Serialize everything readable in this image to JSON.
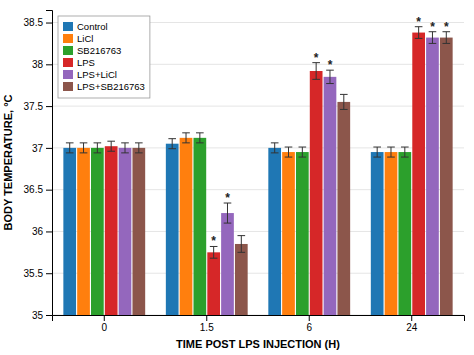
{
  "chart_data": {
    "type": "bar",
    "categories": [
      "0",
      "1.5",
      "6",
      "24"
    ],
    "xlabel": "TIME POST LPS INJECTION (H)",
    "ylabel": "BODY TEMPERATURE, °C",
    "series": [
      {
        "name": "Control",
        "values": [
          37.0,
          37.05,
          37.0,
          36.95
        ],
        "errors": [
          0.06,
          0.06,
          0.06,
          0.06
        ]
      },
      {
        "name": "LiCl",
        "values": [
          37.0,
          37.12,
          36.95,
          36.95
        ],
        "errors": [
          0.06,
          0.06,
          0.06,
          0.06
        ]
      },
      {
        "name": "SB216763",
        "values": [
          37.0,
          37.12,
          36.95,
          36.95
        ],
        "errors": [
          0.06,
          0.06,
          0.06,
          0.06
        ]
      },
      {
        "name": "LPS",
        "values": [
          37.02,
          35.75,
          37.92,
          38.38
        ],
        "errors": [
          0.06,
          0.07,
          0.1,
          0.07
        ]
      },
      {
        "name": "LPS+LiCl",
        "values": [
          37.0,
          36.22,
          37.85,
          38.32
        ],
        "errors": [
          0.06,
          0.12,
          0.08,
          0.07
        ]
      },
      {
        "name": "LPS+SB216763",
        "values": [
          37.0,
          35.85,
          37.55,
          38.32
        ],
        "errors": [
          0.06,
          0.1,
          0.09,
          0.07
        ]
      }
    ],
    "annotations": [
      {
        "text": "*",
        "category": "1.5",
        "series": "LPS"
      },
      {
        "text": "*",
        "category": "6",
        "series": "LPS"
      },
      {
        "text": "*",
        "category": "24",
        "series": "LPS"
      },
      {
        "text": "*",
        "category": "1.5",
        "series": "LPS+LiCl"
      },
      {
        "text": "*",
        "category": "6",
        "series": "LPS+LiCl"
      },
      {
        "text": "*",
        "category": "24",
        "series": "LPS+LiCl"
      },
      {
        "text": "*",
        "category": "24",
        "series": "LPS+SB216763"
      }
    ],
    "ylim": [
      35.0,
      38.65
    ],
    "yticks": [
      35,
      35.5,
      36,
      36.5,
      37,
      37.5,
      38,
      38.5
    ],
    "grid": true,
    "legend": "upper left"
  }
}
